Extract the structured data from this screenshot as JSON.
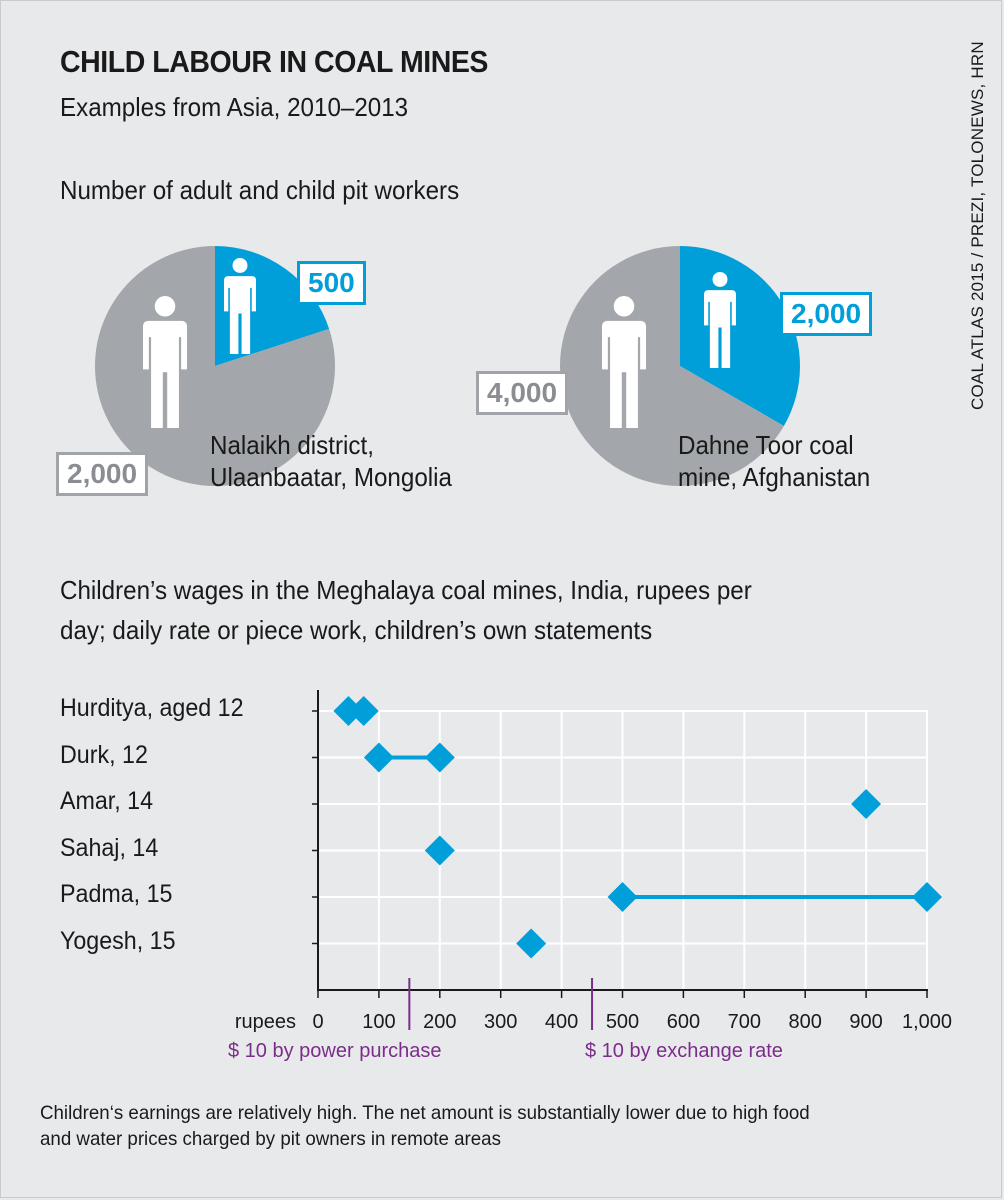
{
  "title": "CHILD LABOUR IN COAL MINES",
  "subtitle": "Examples from Asia, 2010–2013",
  "source": "COAL ATLAS 2015 / PREZI, TOLONEWS, HRN",
  "pie_section_title": "Number of adult and child pit workers",
  "wage_section_title_line1": "Children’s wages in the Meghalaya coal mines, India, rupees per",
  "wage_section_title_line2": "day; daily rate or piece work, children’s own statements",
  "note_line1": "Children‘s earnings are relatively high. The net amount is substantially lower due to high food",
  "note_line2": "and water prices charged by pit owners in remote areas",
  "colors": {
    "child": "#009fda",
    "adult": "#a3a6aa",
    "marker": "#009fda",
    "reference": "#7b2d8b",
    "grid": "#ffffff"
  },
  "chart_data": [
    {
      "type": "pie",
      "location_line1": "Nalaikh district,",
      "location_line2": "Ulaanbaatar, Mongolia",
      "slices": [
        {
          "label": "500",
          "value": 500,
          "group": "child"
        },
        {
          "label": "2,000",
          "value": 2000,
          "group": "adult"
        }
      ]
    },
    {
      "type": "pie",
      "location_line1": "Dahne Toor coal",
      "location_line2": "mine, Afghanistan",
      "slices": [
        {
          "label": "2,000",
          "value": 2000,
          "group": "child"
        },
        {
          "label": "4,000",
          "value": 4000,
          "group": "adult"
        }
      ]
    },
    {
      "type": "scatter",
      "xlabel": "rupees",
      "xlim": [
        0,
        1000
      ],
      "xticks": [
        0,
        100,
        200,
        300,
        400,
        500,
        600,
        700,
        800,
        900,
        1000
      ],
      "xtick_labels": [
        "0",
        "100",
        "200",
        "300",
        "400",
        "500",
        "600",
        "700",
        "800",
        "900",
        "1,000"
      ],
      "categories": [
        "Hurditya, aged 12",
        "Durk, 12",
        "Amar, 14",
        "Sahaj, 14",
        "Padma, 15",
        "Yogesh, 15"
      ],
      "points": [
        {
          "category": "Hurditya, aged 12",
          "values": [
            50,
            75
          ],
          "range": false
        },
        {
          "category": "Durk, 12",
          "values": [
            100,
            200
          ],
          "range": true
        },
        {
          "category": "Amar, 14",
          "values": [
            900
          ],
          "range": false
        },
        {
          "category": "Sahaj, 14",
          "values": [
            200
          ],
          "range": false
        },
        {
          "category": "Padma, 15",
          "values": [
            500,
            1000
          ],
          "range": true
        },
        {
          "category": "Yogesh, 15",
          "values": [
            350
          ],
          "range": false
        }
      ],
      "reference_lines": [
        {
          "x": 150,
          "label": "$ 10 by power purchase"
        },
        {
          "x": 450,
          "label": "$ 10 by exchange rate"
        }
      ]
    }
  ]
}
